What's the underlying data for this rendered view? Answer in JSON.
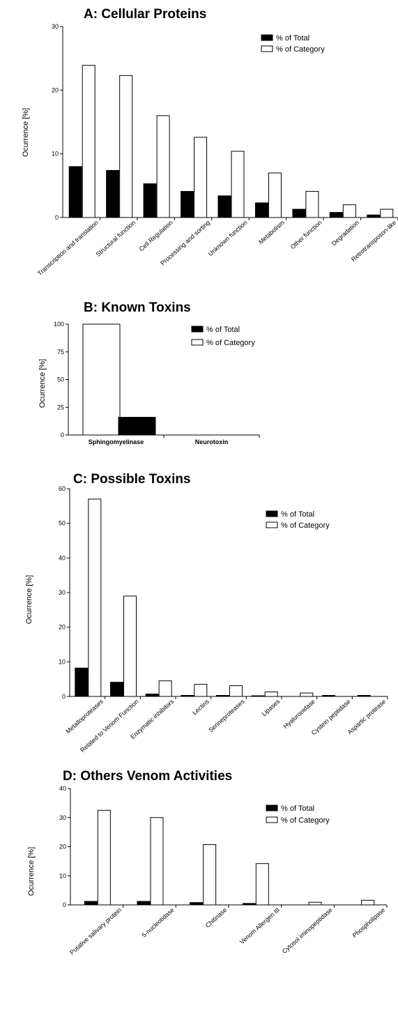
{
  "colors": {
    "total": "#000000",
    "category": "#ffffff",
    "outline": "#000000"
  },
  "legend": {
    "total": "% of Total",
    "category": "% of Category"
  },
  "chart_data": [
    {
      "type": "bar",
      "title": "A: Cellular Proteins",
      "ylabel": "Ocurrence [%]",
      "ylim": [
        0,
        30
      ],
      "yticks": [
        0,
        10,
        20,
        30
      ],
      "categories": [
        "Transcription and translation",
        "Structural function",
        "Cell Regulation",
        "Processing and sorting",
        "Unknown function",
        "Metabolism",
        "Other function",
        "Degradation",
        "Retrotransposon-like"
      ],
      "series": [
        {
          "name": "% of Total",
          "values": [
            8.0,
            7.4,
            5.3,
            4.1,
            3.4,
            2.3,
            1.3,
            0.8,
            0.4
          ]
        },
        {
          "name": "% of Category",
          "values": [
            23.9,
            22.3,
            16.0,
            12.6,
            10.4,
            7.0,
            4.1,
            2.0,
            1.3
          ]
        }
      ]
    },
    {
      "type": "bar",
      "title": "B: Known Toxins",
      "ylabel": "Ocurrence [%]",
      "ylim": [
        0,
        100
      ],
      "yticks": [
        0,
        25,
        50,
        75,
        100
      ],
      "categories": [
        "Sphingomyelinase",
        "Neurotoxin"
      ],
      "series": [
        {
          "name": "% of Total",
          "values": [
            16,
            0
          ]
        },
        {
          "name": "% of Category",
          "values": [
            100,
            0
          ]
        }
      ]
    },
    {
      "type": "bar",
      "title": "C: Possible Toxins",
      "ylabel": "Ocurrence [%]",
      "ylim": [
        0,
        60
      ],
      "yticks": [
        0,
        10,
        20,
        30,
        40,
        50,
        60
      ],
      "categories": [
        "Metalloproteases",
        "Related to Venom Function",
        "Enzymatic inhibitors",
        "Lectins",
        "Serineproteases",
        "Lipases",
        "Hyaluronidase",
        "Cystein peptidase",
        "Aspartic protease"
      ],
      "series": [
        {
          "name": "% of Total",
          "values": [
            8.2,
            4.1,
            0.7,
            0.3,
            0.3,
            0.2,
            0.0,
            0.3,
            0.3
          ]
        },
        {
          "name": "% of Category",
          "values": [
            57.0,
            29.0,
            4.5,
            3.5,
            3.1,
            1.3,
            1.0,
            0.0,
            0.0
          ]
        }
      ]
    },
    {
      "type": "bar",
      "title": "D: Others Venom Activities",
      "ylabel": "Ocurrence [%]",
      "ylim": [
        0,
        40
      ],
      "yticks": [
        0,
        10,
        20,
        30,
        40
      ],
      "categories": [
        "Putative salivary protein",
        "5-nucleotidase",
        "Chitinase",
        "Venom Allergen III",
        "Cytosol iminopeptidase",
        "Phospholipase"
      ],
      "series": [
        {
          "name": "% of Total",
          "values": [
            1.2,
            1.2,
            0.8,
            0.5,
            0.0,
            0.0
          ]
        },
        {
          "name": "% of Category",
          "values": [
            32.5,
            30.0,
            20.7,
            14.2,
            0.9,
            1.6
          ]
        }
      ]
    }
  ]
}
